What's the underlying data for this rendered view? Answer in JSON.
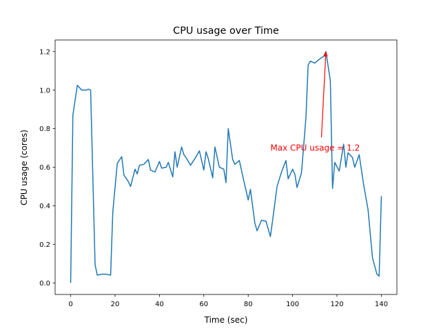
{
  "chart_data": {
    "type": "line",
    "title": "CPU usage over Time",
    "xlabel": "Time (sec)",
    "ylabel": "CPU usage (cores)",
    "xlim": [
      -7,
      147
    ],
    "ylim": [
      -0.06,
      1.26
    ],
    "grid": false,
    "legend": "none",
    "xticks": [
      0,
      20,
      40,
      60,
      80,
      100,
      120,
      140
    ],
    "xtick_labels": [
      "0",
      "20",
      "40",
      "60",
      "80",
      "100",
      "120",
      "140"
    ],
    "yticks": [
      0.0,
      0.2,
      0.4,
      0.6,
      0.8,
      1.0,
      1.2
    ],
    "ytick_labels": [
      "0.0",
      "0.2",
      "0.4",
      "0.6",
      "0.8",
      "1.0",
      "1.2"
    ],
    "colors": {
      "series": "#1f77b4",
      "annotation": "#ff0000",
      "axes": "#000000"
    },
    "series": [
      {
        "x": [
          0,
          1,
          3,
          5,
          7,
          8,
          9,
          11,
          12,
          14,
          16,
          18,
          19,
          21,
          23,
          24,
          26,
          27,
          29,
          30,
          31,
          33,
          35,
          36,
          38,
          40,
          41,
          43,
          44,
          46,
          47,
          48,
          50,
          51,
          52,
          54,
          56,
          58,
          60,
          61,
          62,
          64,
          65,
          67,
          69,
          70,
          71,
          73,
          74,
          76,
          78,
          80,
          81,
          83,
          84,
          86,
          88,
          90,
          91,
          93,
          95,
          97,
          98,
          100,
          101,
          102,
          104,
          106,
          107,
          108,
          110,
          112,
          114,
          115,
          117,
          118,
          119,
          121,
          123,
          124,
          125,
          127,
          128,
          130,
          132,
          134,
          136,
          138,
          139,
          140
        ],
        "y": [
          0.0,
          0.87,
          1.025,
          1.0,
          1.0,
          1.005,
          1.0,
          0.095,
          0.04,
          0.045,
          0.045,
          0.04,
          0.37,
          0.62,
          0.655,
          0.56,
          0.525,
          0.5,
          0.59,
          0.565,
          0.61,
          0.615,
          0.64,
          0.585,
          0.575,
          0.63,
          0.595,
          0.6,
          0.625,
          0.55,
          0.68,
          0.6,
          0.705,
          0.665,
          0.65,
          0.61,
          0.645,
          0.685,
          0.585,
          0.68,
          0.645,
          0.545,
          0.705,
          0.6,
          0.59,
          0.52,
          0.8,
          0.64,
          0.615,
          0.635,
          0.53,
          0.43,
          0.485,
          0.31,
          0.27,
          0.325,
          0.32,
          0.24,
          0.325,
          0.5,
          0.575,
          0.635,
          0.54,
          0.59,
          0.565,
          0.495,
          0.57,
          0.855,
          1.13,
          1.15,
          1.14,
          1.16,
          1.175,
          1.2,
          1.05,
          0.49,
          0.625,
          0.58,
          0.72,
          0.6,
          0.675,
          0.65,
          0.6,
          0.665,
          0.51,
          0.38,
          0.13,
          0.045,
          0.035,
          0.45
        ]
      }
    ],
    "annotation": {
      "text": "Max CPU usage = 1.2",
      "point": [
        115,
        1.2
      ],
      "text_position": [
        90,
        0.7
      ],
      "arrow_tail": [
        113,
        0.755
      ]
    }
  }
}
